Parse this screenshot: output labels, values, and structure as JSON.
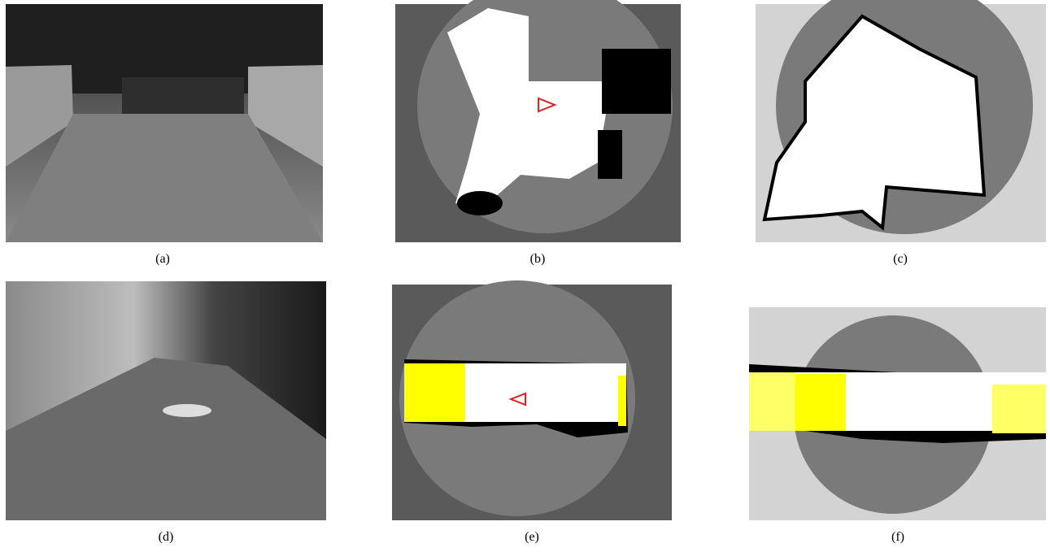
{
  "captions": [
    "(a)",
    "(b)",
    "(c)",
    "(d)",
    "(e)",
    "(f)"
  ]
}
